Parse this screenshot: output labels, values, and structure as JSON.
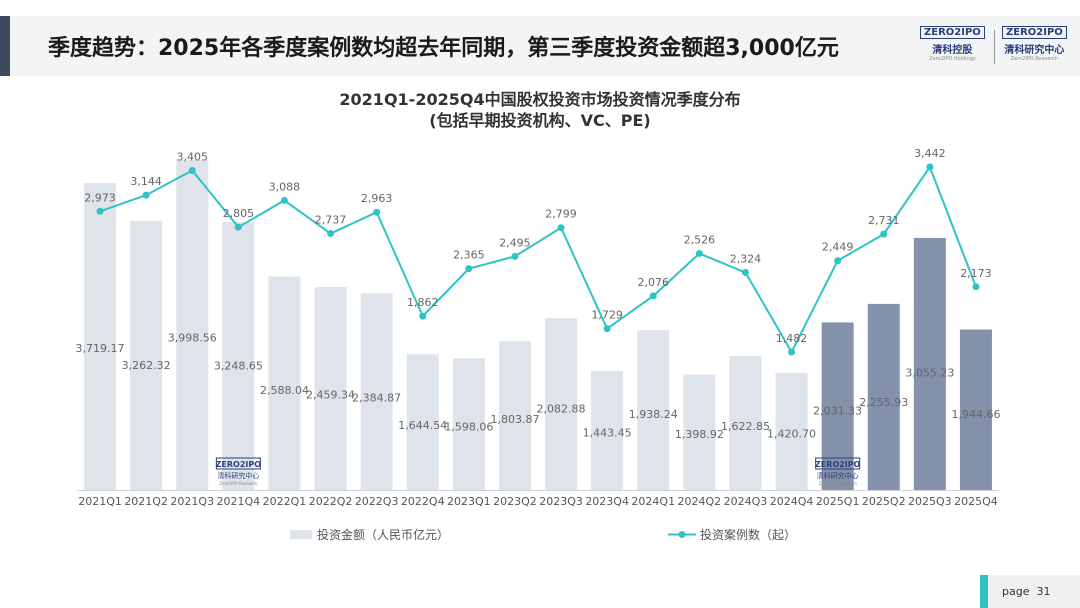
{
  "header": {
    "title": "季度趋势：2025年各季度案例数均超去年同期，第三季度投资金额超3,000亿元",
    "logo1": {
      "box": "ZERO2IPO",
      "cn": "清科控股",
      "en": "Zero2IPO Holdings"
    },
    "logo2": {
      "box": "ZERO2IPO",
      "cn": "清科研究中心",
      "en": "Zero2IPO Research"
    }
  },
  "chart_data": {
    "type": "bar+line",
    "title": "2021Q1-2025Q4中国股权投资市场投资情况季度分布",
    "subtitle": "(包括早期投资机构、VC、PE)",
    "categories": [
      "2021Q1",
      "2021Q2",
      "2021Q3",
      "2021Q4",
      "2022Q1",
      "2022Q2",
      "2022Q3",
      "2022Q4",
      "2023Q1",
      "2023Q2",
      "2023Q3",
      "2023Q4",
      "2024Q1",
      "2024Q2",
      "2024Q3",
      "2024Q4",
      "2025Q1",
      "2025Q2",
      "2025Q3",
      "2025Q4"
    ],
    "series": [
      {
        "name": "投资金额（人民币亿元）",
        "kind": "bar",
        "values": [
          3719.17,
          3262.32,
          3998.56,
          3248.65,
          2588.04,
          2459.34,
          2384.87,
          1644.54,
          1598.06,
          1803.87,
          2082.88,
          1443.45,
          1938.24,
          1398.92,
          1622.85,
          1420.7,
          2031.33,
          2255.93,
          3055.23,
          1944.66
        ],
        "labels": [
          "3,719.17",
          "3,262.32",
          "3,998.56",
          "3,248.65",
          "2,588.04",
          "2,459.34",
          "2,384.87",
          "1,644.54",
          "1,598.06",
          "1,803.87",
          "2,082.88",
          "1,443.45",
          "1,938.24",
          "1,398.92",
          "1,622.85",
          "1,420.70",
          "2,031.33",
          "2,255.93",
          "3,055.23",
          "1,944.66"
        ],
        "color": "#dfe3ea",
        "highlight_color": "#8392aa",
        "highlight_from": "2025Q1"
      },
      {
        "name": "投资案例数（起）",
        "kind": "line",
        "values": [
          2973,
          3144,
          3405,
          2805,
          3088,
          2737,
          2963,
          1862,
          2365,
          2495,
          2799,
          1729,
          2076,
          2526,
          2324,
          1482,
          2449,
          2731,
          3442,
          2173
        ],
        "labels": [
          "2,973",
          "3,144",
          "3,405",
          "2,805",
          "3,088",
          "2,737",
          "2,963",
          "1,862",
          "2,365",
          "2,495",
          "2,799",
          "1,729",
          "2,076",
          "2,526",
          "2,324",
          "1,482",
          "2,449",
          "2,731",
          "3,442",
          "2,173"
        ],
        "color": "#2ec4c6"
      }
    ],
    "watermark": {
      "box": "ZERO2IPO",
      "cn": "清科研究中心",
      "en": "Zero2IPO Research"
    }
  },
  "page": {
    "label": "page",
    "number": "31"
  }
}
